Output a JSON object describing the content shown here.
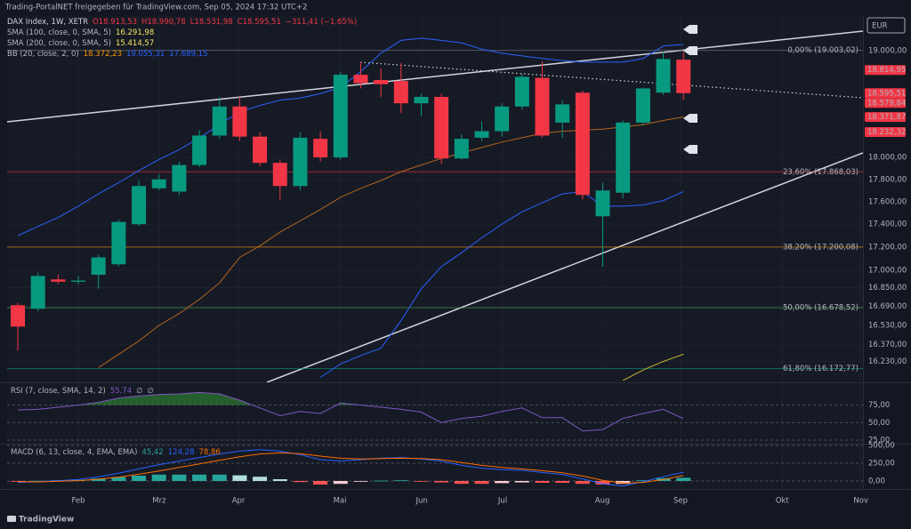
{
  "header": {
    "source": "Trading-PortalNET freigegeben für TradingView.com, Sep 05, 2024 17:32 UTC+2",
    "currency": "EUR",
    "logo": "TradingView"
  },
  "chart_data": [
    {
      "type": "candlestick",
      "title": "DAX Index, 1W, XETR",
      "ohlc_labels": [
        "O18.913,53",
        "H18.990,78",
        "L18.531,98",
        "C18.595,51",
        "−311,41 (−1,65%)"
      ],
      "indicators": [
        {
          "name": "SMA (100, close, 0, SMA, 5)",
          "values": [
            "16.291,98"
          ],
          "colors": [
            "#f5e663"
          ]
        },
        {
          "name": "SMA (200, close, 0, SMA, 5)",
          "values": [
            "15.414,57"
          ],
          "colors": [
            "#f5e663"
          ]
        },
        {
          "name": "BB (20, close, 2, 0)",
          "values": [
            "18.372,23",
            "19.055,31",
            "17.689,15"
          ],
          "colors": [
            "#ff9800",
            "#2962ff",
            "#2962ff"
          ]
        }
      ],
      "open": [
        16700,
        16670,
        16920,
        16900,
        16960,
        17050,
        17400,
        17720,
        17690,
        17930,
        18200,
        18470,
        18190,
        17950,
        17740,
        18170,
        18000,
        18770,
        18720,
        18710,
        18500,
        18560,
        17990,
        18180,
        18240,
        18470,
        18740,
        18320,
        18600,
        17470,
        17680,
        18320,
        18600,
        18913.53
      ],
      "high": [
        16720,
        16980,
        16960,
        16950,
        17130,
        17440,
        17790,
        17850,
        17960,
        18250,
        18560,
        18560,
        18230,
        17980,
        18230,
        18240,
        18800,
        18890,
        18830,
        18880,
        18590,
        18590,
        18210,
        18330,
        18500,
        18780,
        18900,
        18530,
        18620,
        17770,
        18340,
        18650,
        18990,
        18990.78
      ],
      "low": [
        16320,
        16650,
        16880,
        16880,
        16840,
        17030,
        17380,
        17700,
        17660,
        17910,
        18170,
        18150,
        17920,
        17620,
        17700,
        17960,
        17980,
        18640,
        18560,
        18410,
        18380,
        17940,
        17980,
        18150,
        18190,
        18440,
        18180,
        18180,
        17620,
        17030,
        17630,
        18300,
        18580,
        18531.98
      ],
      "close": [
        16520,
        16950,
        16900,
        16910,
        17110,
        17420,
        17740,
        17800,
        17930,
        18200,
        18470,
        18190,
        17950,
        17740,
        18180,
        18000,
        18770,
        18690,
        18680,
        18500,
        18560,
        17990,
        18170,
        18240,
        18470,
        18750,
        18200,
        18490,
        17660,
        17700,
        18320,
        18640,
        18920,
        18595.51
      ],
      "up_color": "#089981",
      "down_color": "#f23645",
      "series": [
        {
          "color": "#2962ff",
          "values": [
            17300,
            17380,
            17460,
            17560,
            17670,
            17770,
            17880,
            17980,
            18070,
            18180,
            18300,
            18420,
            18480,
            18530,
            18550,
            18590,
            18650,
            18800,
            18975,
            19100,
            19120,
            19100,
            19075,
            19015,
            18975,
            18950,
            18925,
            18905,
            18890,
            18890,
            18890,
            18925,
            19045,
            19060
          ]
        },
        {
          "color": "#2962ff",
          "values": [
            null,
            null,
            null,
            null,
            null,
            null,
            null,
            null,
            null,
            null,
            null,
            null,
            null,
            null,
            null,
            16100,
            16210,
            16280,
            16340,
            16570,
            16840,
            17030,
            17150,
            17280,
            17400,
            17510,
            17590,
            17670,
            17690,
            17560,
            17560,
            17570,
            17610,
            17690
          ]
        },
        {
          "color": "#b5651d",
          "values": [
            null,
            null,
            null,
            null,
            16180,
            16290,
            16400,
            16530,
            16630,
            16750,
            16890,
            17110,
            17210,
            17330,
            17430,
            17530,
            17640,
            17720,
            17790,
            17870,
            17930,
            17990,
            18040,
            18090,
            18140,
            18180,
            18220,
            18240,
            18250,
            18260,
            18280,
            18300,
            18340,
            18371.87
          ]
        },
        {
          "color": "#c9b92a",
          "values": [
            null,
            null,
            null,
            null,
            null,
            null,
            null,
            null,
            null,
            null,
            null,
            null,
            null,
            null,
            null,
            null,
            null,
            null,
            null,
            null,
            null,
            null,
            null,
            null,
            null,
            null,
            null,
            null,
            null,
            null,
            16075,
            16160,
            16230,
            16290
          ]
        }
      ],
      "levels": [
        {
          "value": 19003.02,
          "label": "0,00% (19.003,02)",
          "color": "#787b86"
        },
        {
          "value": 17868.03,
          "label": "23,60% (17.868,03)",
          "color": "#f23645"
        },
        {
          "value": 17200.08,
          "label": "38,20% (17.200,08)",
          "color": "#ff9800"
        },
        {
          "value": 16678.52,
          "label": "50,00% (16.678,52)",
          "color": "#4caf50"
        },
        {
          "value": 16172.77,
          "label": "61,80% (16.172,77)",
          "color": "#089981"
        }
      ],
      "price_labels": [
        {
          "value": 18814.95,
          "label": "18.814,95",
          "color": "#f23645"
        },
        {
          "value": 18595.51,
          "label": "18.595,51",
          "color": "#f23645"
        },
        {
          "value": 18579.84,
          "label": "18.579,84",
          "color": "#f23645"
        },
        {
          "value": 18371.87,
          "label": "18.371,87",
          "color": "#f23645"
        },
        {
          "value": 18232.32,
          "label": "18.232,32",
          "color": "#f23645"
        }
      ],
      "log_scale": true,
      "grid": true,
      "ylim": [
        16060,
        19337
      ],
      "yticks": [
        {
          "value": 19000,
          "label": "19.000,00"
        },
        {
          "value": 18000,
          "label": "18.000,00"
        },
        {
          "value": 17800,
          "label": "17.800,00"
        },
        {
          "value": 17600,
          "label": "17.600,00"
        },
        {
          "value": 17400,
          "label": "17.400,00"
        },
        {
          "value": 17200,
          "label": "17.200,00"
        },
        {
          "value": 17000,
          "label": "17.000,00"
        },
        {
          "value": 16850,
          "label": "16.850,00"
        },
        {
          "value": 16690,
          "label": "16.690,00"
        },
        {
          "value": 16530,
          "label": "16.530,00"
        },
        {
          "value": 16370,
          "label": "16.370,00"
        },
        {
          "value": 16230,
          "label": "16.230,00"
        }
      ],
      "xlim": [
        -0.53,
        41.9
      ],
      "xticks": [
        {
          "value": 3,
          "label": "Feb"
        },
        {
          "value": 7.01,
          "label": "Mrz"
        },
        {
          "value": 10.94,
          "label": "Apr"
        },
        {
          "value": 15.97,
          "label": "Mai"
        },
        {
          "value": 20.03,
          "label": "Jun"
        },
        {
          "value": 24.04,
          "label": "Jul"
        },
        {
          "value": 28.98,
          "label": "Aug"
        },
        {
          "value": 32.86,
          "label": "Sep"
        },
        {
          "value": 37.9,
          "label": "Okt"
        },
        {
          "value": 41.8,
          "label": "Nov"
        }
      ]
    },
    {
      "type": "line",
      "title": "RSI (7, close, SMA, 14, 2)",
      "legend_values": [
        "55,74",
        "∅",
        "∅"
      ],
      "legend_colors": [
        "#7e57c2",
        "#b2b5be",
        "#b2b5be"
      ],
      "series": [
        {
          "color": "#7e57c2",
          "values": [
            68,
            69,
            72,
            75,
            79,
            85,
            88,
            90,
            91,
            93,
            91,
            82,
            71,
            60,
            66,
            63,
            78,
            75,
            72,
            69,
            65,
            50,
            56,
            59,
            66,
            71,
            57,
            57,
            38,
            40,
            56,
            63,
            69,
            55.74
          ]
        }
      ],
      "overbought_color": "#2e7d32",
      "grid": "dashed",
      "ylim": [
        21.25,
        106.25
      ],
      "yticks": [
        {
          "value": 75,
          "label": "75,00"
        },
        {
          "value": 50,
          "label": "50,00"
        },
        {
          "value": 25,
          "label": "25,00"
        }
      ]
    },
    {
      "type": "macd",
      "title": "MACD (6, 13, close, 4, EMA, EMA)",
      "legend_values": [
        "45,42",
        "124,28",
        "78,86"
      ],
      "legend_colors": [
        "#26a69a",
        "#2962ff",
        "#ff6d00"
      ],
      "histogram": [
        -10,
        2,
        10,
        15,
        35,
        55,
        75,
        90,
        90,
        90,
        90,
        80,
        60,
        25,
        -15,
        -50,
        -40,
        -10,
        5,
        10,
        -5,
        -20,
        -40,
        -40,
        -30,
        -20,
        -25,
        -25,
        -40,
        -50,
        -40,
        10,
        40,
        45.42
      ],
      "histogram_colors": [
        "#26a69a",
        "#b2dfdb",
        "#ff5252",
        "#ffcdd2"
      ],
      "series": [
        {
          "color": "#2962ff",
          "values": [
            -20,
            -10,
            5,
            20,
            60,
            110,
            170,
            230,
            280,
            330,
            380,
            420,
            440,
            420,
            370,
            300,
            280,
            300,
            320,
            330,
            310,
            280,
            220,
            180,
            160,
            150,
            120,
            90,
            30,
            -40,
            -70,
            -10,
            60,
            124.28
          ]
        },
        {
          "color": "#ff6d00",
          "values": [
            -10,
            -12,
            -5,
            5,
            25,
            55,
            95,
            140,
            190,
            240,
            290,
            340,
            380,
            395,
            385,
            350,
            320,
            310,
            315,
            320,
            315,
            300,
            260,
            220,
            190,
            170,
            145,
            115,
            70,
            10,
            -30,
            -20,
            20,
            78.86
          ]
        }
      ],
      "grid": "dashed",
      "ylim": [
        -112.5,
        512.5
      ],
      "yticks": [
        {
          "value": 500,
          "label": "500,00"
        },
        {
          "value": 250,
          "label": "250,00"
        },
        {
          "value": 0,
          "label": "0,00"
        }
      ]
    }
  ]
}
